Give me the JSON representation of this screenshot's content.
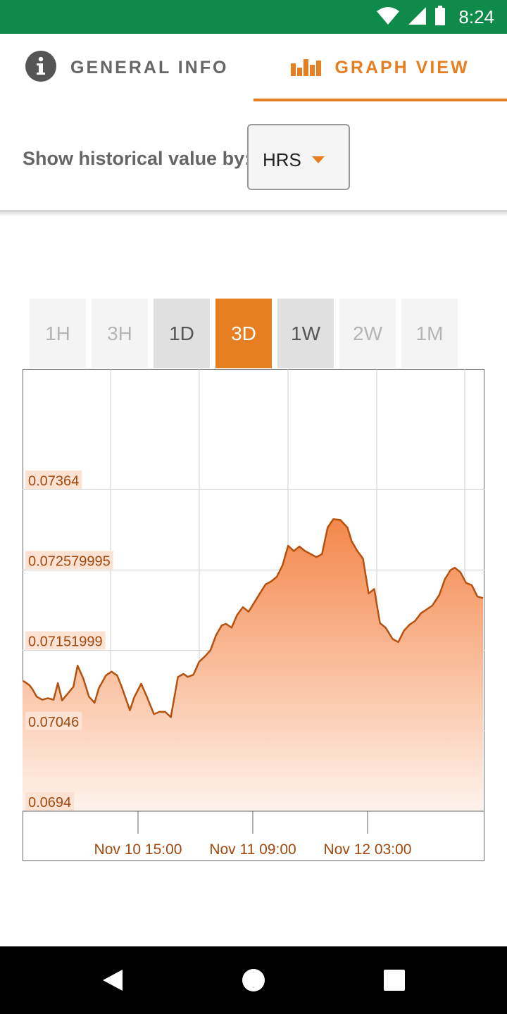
{
  "status_bar": {
    "time": "8:24",
    "icons": [
      "wifi-icon",
      "cell-signal-icon",
      "battery-icon"
    ]
  },
  "tabs": [
    {
      "label": "GENERAL INFO",
      "icon": "info-icon",
      "active": false
    },
    {
      "label": "GRAPH VIEW",
      "icon": "bar-chart-icon",
      "active": true
    }
  ],
  "filter": {
    "label": "Show historical value by:",
    "selected": "HRS"
  },
  "ranges": [
    {
      "label": "1H",
      "state": "disabled"
    },
    {
      "label": "3H",
      "state": "disabled"
    },
    {
      "label": "1D",
      "state": "enabled"
    },
    {
      "label": "3D",
      "state": "selected"
    },
    {
      "label": "1W",
      "state": "enabled"
    },
    {
      "label": "2W",
      "state": "disabled"
    },
    {
      "label": "1M",
      "state": "disabled"
    }
  ],
  "colors": {
    "accent": "#e67e22",
    "status_bar": "#0e8a4a",
    "line": "#b5520f"
  },
  "chart_data": {
    "type": "area",
    "y_ticks": [
      "0.0694",
      "0.07046",
      "0.07151999",
      "0.072579995",
      "0.07364"
    ],
    "ylim": [
      0.0694,
      0.07523
    ],
    "x_labels": [
      "Nov 10  15:00",
      "Nov 11  09:00",
      "Nov 12  03:00"
    ],
    "x": [
      0,
      2,
      5,
      7,
      10,
      14,
      18,
      22,
      25,
      28,
      32,
      36,
      39,
      43,
      47,
      51,
      54,
      59,
      63,
      67,
      70,
      76,
      79,
      84,
      88,
      93,
      97,
      101,
      105,
      110,
      114,
      117,
      121,
      125,
      129,
      133,
      137,
      141,
      144,
      148,
      152,
      156,
      160,
      164,
      168,
      172,
      176,
      180,
      184,
      188,
      192,
      196,
      200,
      204,
      208,
      212,
      216,
      220,
      225,
      230,
      233,
      237,
      241,
      245,
      249,
      253,
      257,
      262,
      266,
      270,
      274,
      278,
      282,
      286,
      290,
      295,
      299,
      303,
      306,
      310,
      314,
      318,
      322,
      326
    ],
    "values": [
      0.07112,
      0.0711,
      0.07106,
      0.07101,
      0.07091,
      0.07087,
      0.07089,
      0.07087,
      0.07109,
      0.07086,
      0.07095,
      0.07104,
      0.07132,
      0.07115,
      0.07091,
      0.07083,
      0.07102,
      0.07119,
      0.07124,
      0.07119,
      0.07105,
      0.07073,
      0.0709,
      0.07108,
      0.07091,
      0.07068,
      0.07071,
      0.07071,
      0.07064,
      0.07117,
      0.07121,
      0.07117,
      0.0712,
      0.07137,
      0.07144,
      0.07152,
      0.07172,
      0.07185,
      0.07187,
      0.07182,
      0.07199,
      0.07209,
      0.07203,
      0.07215,
      0.07227,
      0.07239,
      0.07243,
      0.07249,
      0.07264,
      0.0729,
      0.07283,
      0.07289,
      0.07283,
      0.07279,
      0.07275,
      0.07279,
      0.07314,
      0.07325,
      0.07324,
      0.07314,
      0.07296,
      0.07283,
      0.07273,
      0.07227,
      0.07233,
      0.07188,
      0.07182,
      0.07167,
      0.07163,
      0.07178,
      0.07186,
      0.07191,
      0.07201,
      0.07206,
      0.07211,
      0.07225,
      0.07246,
      0.07258,
      0.07261,
      0.07255,
      0.07241,
      0.07238,
      0.07223,
      0.07221
    ]
  }
}
